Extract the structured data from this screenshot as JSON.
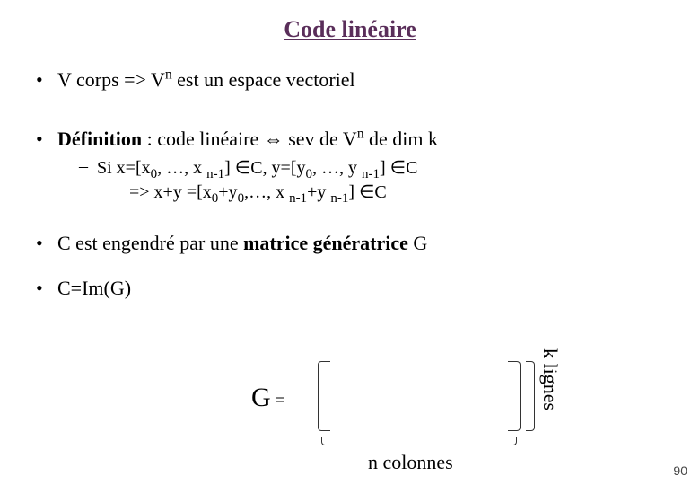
{
  "title": "Code linéaire",
  "bullets": {
    "b1_pre": "V corps => V",
    "b1_sup": "n",
    "b1_post": " est un espace vectoriel",
    "b2_def": "Définition",
    "b2_mid": " : code linéaire ⇔ sev de V",
    "b2_sup": "n",
    "b2_post": " de dim k",
    "sub_line1": "Si x=[x",
    "sub_s0a": "0",
    "sub_mid1": ", …, x ",
    "sub_s0b": "n-1",
    "sub_mid2": "] ∈C, y=[y",
    "sub_s0c": "0",
    "sub_mid3": ", …, y ",
    "sub_s0d": "n-1",
    "sub_end1": "] ∈C",
    "sub_line2a": "=> x+y =[x",
    "sub_s2a": "0",
    "sub_line2b": "+y",
    "sub_s2b": "0",
    "sub_line2c": ",…, x ",
    "sub_s2c": "n-1",
    "sub_line2d": "+y ",
    "sub_s2d": "n-1",
    "sub_line2e": "] ∈C",
    "b3_pre": "C est engendré par une ",
    "b3_bold": "matrice génératrice",
    "b3_post": " G",
    "b4": "C=Im(G)"
  },
  "matrix": {
    "G": "G",
    "eq": " =",
    "k_lignes": "k lignes",
    "n_colonnes": "n colonnes"
  },
  "page_number": "90",
  "colors": {
    "title": "#5a2e5a",
    "text": "#000000",
    "background": "#ffffff"
  }
}
